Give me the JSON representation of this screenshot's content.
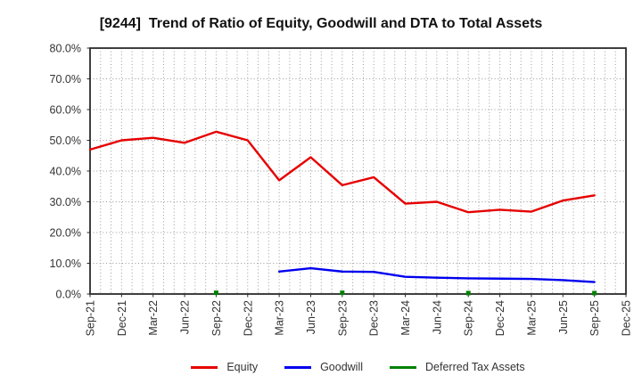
{
  "chart_data": {
    "type": "line",
    "title": "[9244]  Trend of Ratio of Equity, Goodwill and DTA to Total Assets",
    "xlabel": "",
    "ylabel": "",
    "ylim": [
      0,
      80
    ],
    "unit": "%",
    "grid": true,
    "legend_position": "bottom-center",
    "categories": [
      "Sep-21",
      "Dec-21",
      "Mar-22",
      "Jun-22",
      "Sep-22",
      "Dec-22",
      "Mar-23",
      "Jun-23",
      "Sep-23",
      "Dec-23",
      "Mar-24",
      "Jun-24",
      "Sep-24",
      "Dec-24",
      "Mar-25",
      "Jun-25",
      "Sep-25",
      "Dec-25"
    ],
    "y_ticks": [
      0,
      10,
      20,
      30,
      40,
      50,
      60,
      70,
      80
    ],
    "y_tick_labels": [
      "0.0%",
      "10.0%",
      "20.0%",
      "30.0%",
      "40.0%",
      "50.0%",
      "60.0%",
      "70.0%",
      "80.0%"
    ],
    "series": [
      {
        "name": "Equity",
        "color": "#e60000",
        "marker": "none",
        "values": [
          47.0,
          50.0,
          50.8,
          49.2,
          52.8,
          50.0,
          37.0,
          44.5,
          35.4,
          38.0,
          29.4,
          30.0,
          26.6,
          27.4,
          26.8,
          30.4,
          32.1,
          null
        ]
      },
      {
        "name": "Goodwill",
        "color": "#0000ee",
        "marker": "none",
        "values": [
          null,
          null,
          null,
          null,
          null,
          null,
          7.3,
          8.4,
          7.3,
          7.2,
          5.6,
          5.3,
          5.1,
          5.0,
          4.9,
          4.5,
          3.9,
          null
        ]
      },
      {
        "name": "Deferred Tax Assets",
        "color": "#008000",
        "marker": "square",
        "values": [
          null,
          null,
          null,
          null,
          0.4,
          null,
          null,
          null,
          0.4,
          null,
          null,
          null,
          0.3,
          null,
          null,
          null,
          0.3,
          null
        ]
      }
    ],
    "style": {
      "grid_color": "#9a9a9a",
      "frame_color": "#2b2b2b",
      "tick_label_color": "#333333"
    }
  }
}
